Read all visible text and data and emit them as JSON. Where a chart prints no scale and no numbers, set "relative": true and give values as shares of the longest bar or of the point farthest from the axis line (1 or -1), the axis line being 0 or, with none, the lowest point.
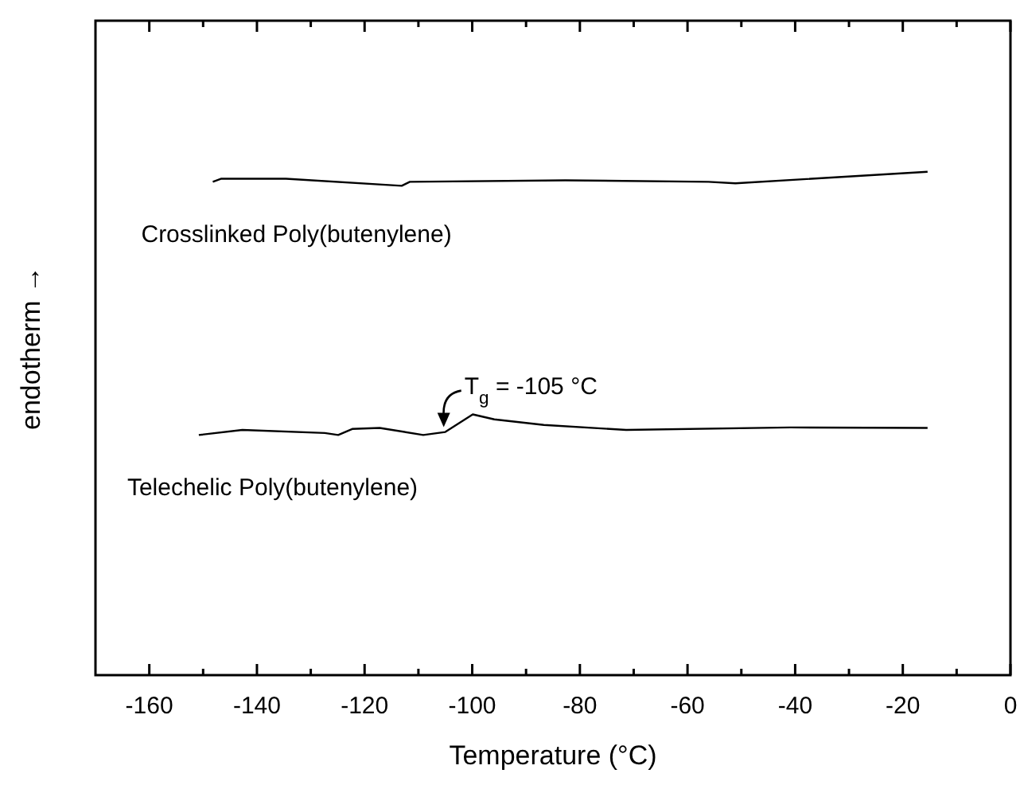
{
  "chart_data": {
    "type": "line",
    "relative": true,
    "xlabel": "Temperature (°C)",
    "ylabel": "endotherm →",
    "xlim": [
      -170,
      0
    ],
    "xticks": [
      -160,
      {
        "value": -150,
        "label": null
      },
      -140,
      {
        "value": -130,
        "label": null
      },
      -120,
      {
        "value": -110,
        "label": null
      },
      -100,
      {
        "value": -90,
        "label": null
      },
      -80,
      {
        "value": -70,
        "label": null
      },
      -60,
      {
        "value": -50,
        "label": null
      },
      -40,
      {
        "value": -30,
        "label": null
      },
      -20,
      {
        "value": -10,
        "label": null
      },
      0
    ],
    "grid": false,
    "marker": "none",
    "line_style": "solid",
    "series": [
      {
        "name": "Crosslinked Poly(butenylene)",
        "color": "#000000",
        "x": [
          -148.2,
          -146.7,
          -134.6,
          -113.1,
          -111.6,
          -82.7,
          -56.1,
          -51.1,
          -15.4
        ],
        "values": [
          0.98,
          0.986,
          0.986,
          0.972,
          0.98,
          0.983,
          0.98,
          0.977,
          1
        ]
      },
      {
        "name": "Telechelic Poly(butenylene)",
        "color": "#000000",
        "x": [
          -150.8,
          -142.7,
          -127.4,
          -124.9,
          -122.3,
          -117.2,
          -109.1,
          -105,
          -99.9,
          -95.9,
          -86.7,
          -71.4,
          -40.9,
          -15.4
        ],
        "values": [
          0.477,
          0.487,
          0.481,
          0.477,
          0.489,
          0.491,
          0.477,
          0.483,
          0.518,
          0.508,
          0.497,
          0.487,
          0.492,
          0.491
        ]
      }
    ],
    "annotations": [
      {
        "text": "T$_{g}$ = -105 °C",
        "x": -105,
        "y": 0.483
      }
    ]
  }
}
